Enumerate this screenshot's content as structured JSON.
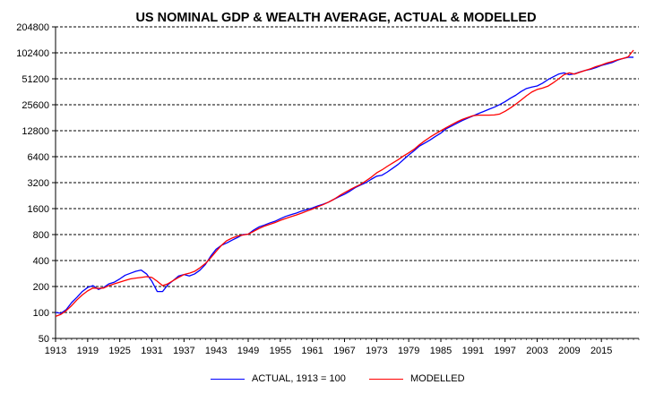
{
  "chart_data": {
    "type": "line",
    "title": "US NOMINAL GDP & WEALTH AVERAGE, ACTUAL & MODELLED",
    "xlabel": "",
    "ylabel": "",
    "y_scale": "log2",
    "ylim": [
      50,
      204800
    ],
    "xlim": [
      1913,
      2022
    ],
    "y_ticks": [
      "50",
      "100",
      "200",
      "400",
      "800",
      "1600",
      "3200",
      "6400",
      "12800",
      "25600",
      "51200",
      "102400",
      "204800"
    ],
    "x_ticks": [
      "1913",
      "1919",
      "1925",
      "1931",
      "1937",
      "1943",
      "1949",
      "1955",
      "1961",
      "1967",
      "1973",
      "1979",
      "1985",
      "1991",
      "1997",
      "2003",
      "2009",
      "2015"
    ],
    "grid": "horizontal-dashed",
    "legend_position": "bottom",
    "series": [
      {
        "name": "ACTUAL, 1913 = 100",
        "color": "#0000ff",
        "x": [
          1913,
          1914,
          1915,
          1916,
          1917,
          1918,
          1919,
          1920,
          1921,
          1922,
          1923,
          1924,
          1925,
          1926,
          1927,
          1928,
          1929,
          1930,
          1931,
          1932,
          1933,
          1934,
          1935,
          1936,
          1937,
          1938,
          1939,
          1940,
          1941,
          1942,
          1943,
          1944,
          1945,
          1946,
          1947,
          1948,
          1949,
          1950,
          1951,
          1952,
          1953,
          1954,
          1955,
          1956,
          1957,
          1958,
          1959,
          1960,
          1961,
          1962,
          1963,
          1964,
          1965,
          1966,
          1967,
          1968,
          1969,
          1970,
          1971,
          1972,
          1973,
          1974,
          1975,
          1976,
          1977,
          1978,
          1979,
          1980,
          1981,
          1982,
          1983,
          1984,
          1985,
          1986,
          1987,
          1988,
          1989,
          1990,
          1991,
          1992,
          1993,
          1994,
          1995,
          1996,
          1997,
          1998,
          1999,
          2000,
          2001,
          2002,
          2003,
          2004,
          2005,
          2006,
          2007,
          2008,
          2009,
          2010,
          2011,
          2012,
          2013,
          2014,
          2015,
          2016,
          2017,
          2018,
          2019,
          2020,
          2021
        ],
        "values": [
          100,
          98,
          108,
          130,
          150,
          175,
          195,
          205,
          185,
          195,
          215,
          225,
          245,
          270,
          285,
          300,
          310,
          280,
          230,
          175,
          175,
          210,
          235,
          265,
          275,
          265,
          280,
          310,
          360,
          450,
          540,
          600,
          640,
          690,
          740,
          800,
          810,
          900,
          980,
          1030,
          1090,
          1140,
          1220,
          1300,
          1360,
          1420,
          1500,
          1560,
          1630,
          1720,
          1800,
          1900,
          2050,
          2200,
          2350,
          2550,
          2800,
          3000,
          3200,
          3500,
          3800,
          3900,
          4250,
          4700,
          5200,
          5900,
          6700,
          7500,
          8500,
          9200,
          10000,
          11000,
          12000,
          13500,
          14500,
          15600,
          16800,
          17900,
          19000,
          20200,
          21400,
          22700,
          24000,
          25700,
          27800,
          30500,
          33000,
          36500,
          39500,
          41000,
          42300,
          45500,
          50000,
          54000,
          58000,
          60000,
          57000,
          58500,
          61500,
          64000,
          66000,
          69000,
          73000,
          76000,
          79000,
          84000,
          88000,
          91000,
          91000
        ]
      },
      {
        "name": "MODELLED",
        "color": "#ff0000",
        "x": [
          1913,
          1914,
          1915,
          1916,
          1917,
          1918,
          1919,
          1920,
          1921,
          1922,
          1923,
          1924,
          1925,
          1926,
          1927,
          1928,
          1929,
          1930,
          1931,
          1932,
          1933,
          1934,
          1935,
          1936,
          1937,
          1938,
          1939,
          1940,
          1941,
          1942,
          1943,
          1944,
          1945,
          1946,
          1947,
          1948,
          1949,
          1950,
          1951,
          1952,
          1953,
          1954,
          1955,
          1956,
          1957,
          1958,
          1959,
          1960,
          1961,
          1962,
          1963,
          1964,
          1965,
          1966,
          1967,
          1968,
          1969,
          1970,
          1971,
          1972,
          1973,
          1974,
          1975,
          1976,
          1977,
          1978,
          1979,
          1980,
          1981,
          1982,
          1983,
          1984,
          1985,
          1986,
          1987,
          1988,
          1989,
          1990,
          1991,
          1992,
          1993,
          1994,
          1995,
          1996,
          1997,
          1998,
          1999,
          2000,
          2001,
          2002,
          2003,
          2004,
          2005,
          2006,
          2007,
          2008,
          2009,
          2010,
          2011,
          2012,
          2013,
          2014,
          2015,
          2016,
          2017,
          2018,
          2019,
          2020,
          2021
        ],
        "values": [
          90,
          95,
          105,
          120,
          140,
          160,
          178,
          192,
          190,
          192,
          205,
          215,
          225,
          235,
          245,
          250,
          255,
          260,
          255,
          230,
          205,
          215,
          235,
          255,
          275,
          285,
          300,
          330,
          370,
          430,
          510,
          600,
          680,
          730,
          770,
          790,
          810,
          870,
          940,
          1000,
          1050,
          1100,
          1170,
          1230,
          1290,
          1350,
          1420,
          1500,
          1580,
          1680,
          1780,
          1900,
          2050,
          2250,
          2450,
          2650,
          2850,
          3050,
          3350,
          3700,
          4150,
          4500,
          4950,
          5400,
          5900,
          6500,
          7100,
          7800,
          8800,
          9800,
          10800,
          11800,
          12800,
          13900,
          15000,
          16200,
          17300,
          18200,
          19100,
          19400,
          19400,
          19400,
          19500,
          20000,
          21500,
          23500,
          26000,
          29000,
          32500,
          36000,
          38500,
          40000,
          42000,
          46000,
          51000,
          57000,
          60000,
          58000,
          61000,
          64000,
          67000,
          71000,
          74000,
          78000,
          81000,
          85000,
          88000,
          92000,
          110000
        ]
      }
    ]
  }
}
